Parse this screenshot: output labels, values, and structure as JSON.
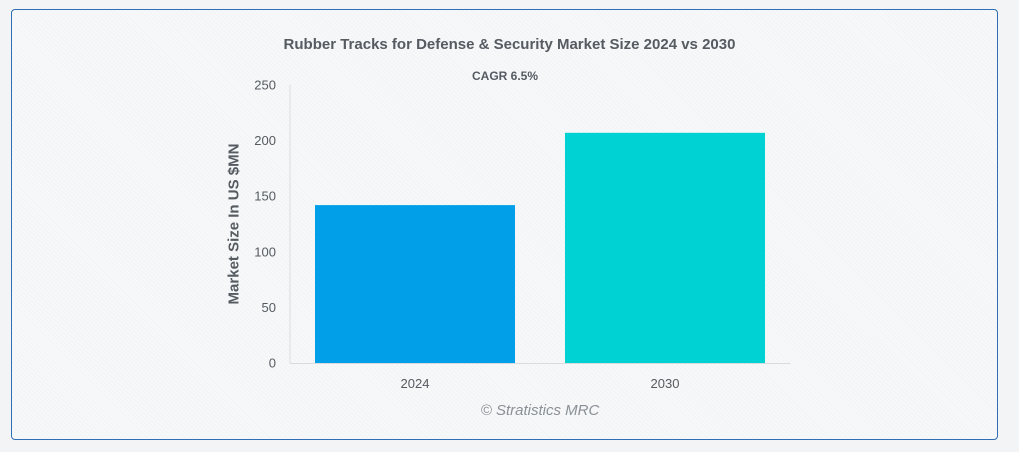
{
  "chart_data": {
    "type": "bar",
    "title": "Rubber Tracks for Defense & Security Market Size 2024 vs 2030",
    "subtitle": "CAGR 6.5%",
    "xlabel": "",
    "ylabel": "Market Size In US $MN",
    "categories": [
      "2024",
      "2030"
    ],
    "values": [
      142,
      207
    ],
    "colors": [
      "#009fe8",
      "#00d2d3"
    ],
    "ylim": [
      0,
      250
    ],
    "yticks": [
      0,
      50,
      100,
      150,
      200,
      250
    ],
    "grid": false,
    "legend": "none"
  },
  "watermark": "© Stratistics MRC"
}
